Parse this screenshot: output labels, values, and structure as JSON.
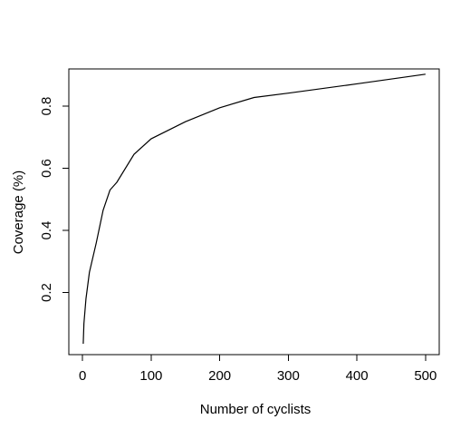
{
  "chart_data": {
    "type": "line",
    "title": "",
    "xlabel": "Number of cyclists",
    "ylabel": "Coverage (%)",
    "xlim": [
      -20,
      520
    ],
    "ylim": [
      0,
      0.92
    ],
    "x_ticks": [
      0,
      100,
      200,
      300,
      400,
      500
    ],
    "y_ticks": [
      0.2,
      0.4,
      0.6,
      0.8
    ],
    "x_tick_labels": [
      "0",
      "100",
      "200",
      "300",
      "400",
      "500"
    ],
    "y_tick_labels": [
      "0.2",
      "0.4",
      "0.6",
      "0.8"
    ],
    "grid": false,
    "legend": "none",
    "series": [
      {
        "color": "#000000",
        "x": [
          1,
          2,
          5,
          10,
          20,
          30,
          40,
          50,
          75,
          100,
          150,
          200,
          250,
          300,
          400,
          500
        ],
        "y": [
          0.035,
          0.1,
          0.18,
          0.265,
          0.36,
          0.465,
          0.53,
          0.555,
          0.645,
          0.695,
          0.75,
          0.795,
          0.828,
          0.842,
          0.872,
          0.903
        ]
      }
    ]
  }
}
